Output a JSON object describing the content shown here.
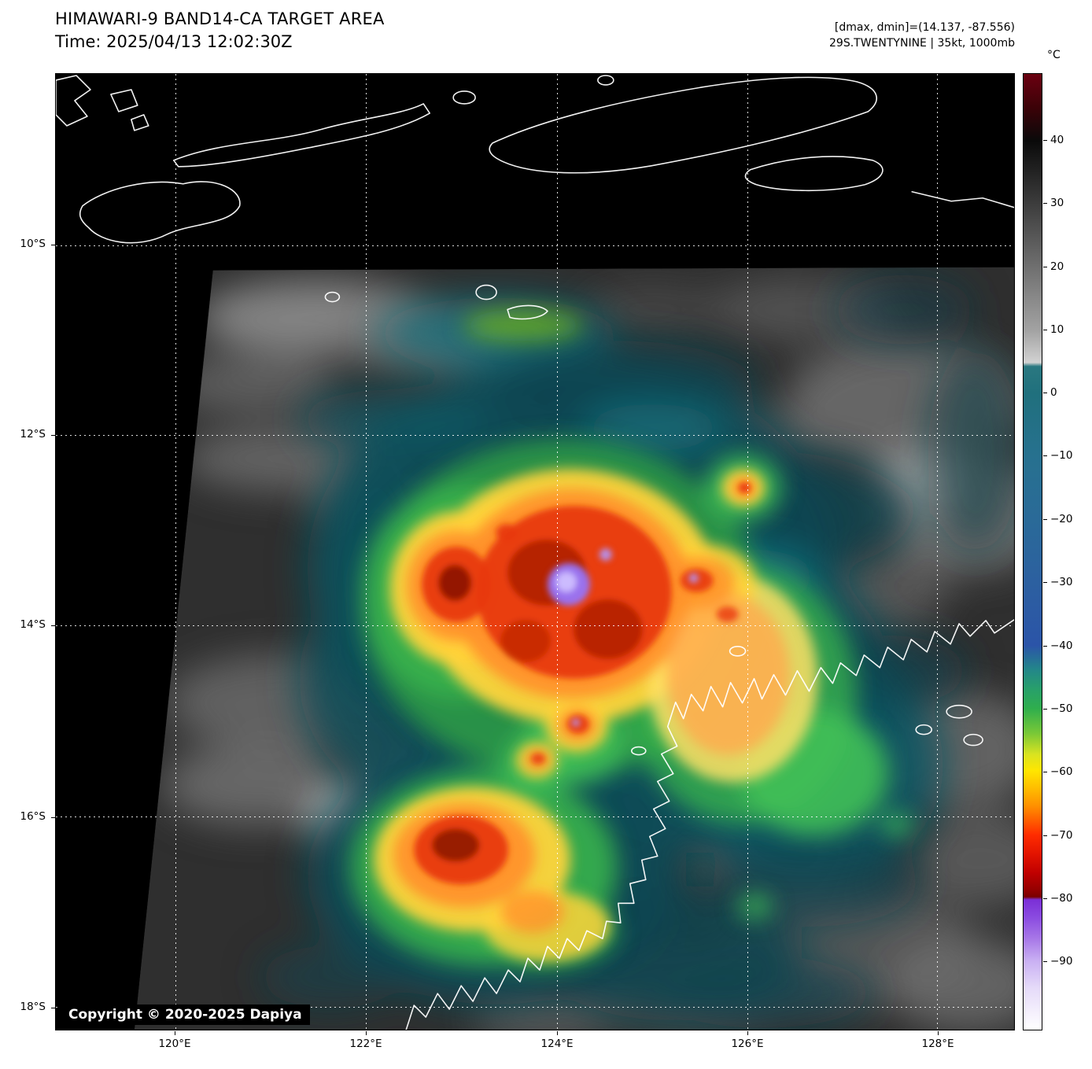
{
  "header": {
    "title": "HIMAWARI-9 BAND14-CA TARGET AREA",
    "time_line": "Time: 2025/04/13 12:02:30Z",
    "dminmax_line": "[dmax, dmin]=(14.137, -87.556)",
    "storm_line": "29S.TWENTYNINE | 35kt, 1000mb"
  },
  "copyright": "Copyright © 2020-2025 Dapiya",
  "colorbar": {
    "unit_label": "°C",
    "ticks": [
      {
        "label": "40",
        "pos_pct": 6.98
      },
      {
        "label": "30",
        "pos_pct": 13.59
      },
      {
        "label": "20",
        "pos_pct": 20.18
      },
      {
        "label": "10",
        "pos_pct": 26.78
      },
      {
        "label": "0",
        "pos_pct": 33.36
      },
      {
        "label": "−10",
        "pos_pct": 39.96
      },
      {
        "label": "−20",
        "pos_pct": 46.59
      },
      {
        "label": "−30",
        "pos_pct": 53.16
      },
      {
        "label": "−40",
        "pos_pct": 59.82
      },
      {
        "label": "−50",
        "pos_pct": 66.39
      },
      {
        "label": "−60",
        "pos_pct": 72.97
      },
      {
        "label": "−70",
        "pos_pct": 79.62
      },
      {
        "label": "−80",
        "pos_pct": 86.2
      },
      {
        "label": "−90",
        "pos_pct": 92.78
      }
    ],
    "gradient_stops": [
      {
        "pct": 0,
        "color": "#6b0010"
      },
      {
        "pct": 3.5,
        "color": "#3c0208"
      },
      {
        "pct": 7,
        "color": "#0a0a0a"
      },
      {
        "pct": 26.8,
        "color": "#a2a2a2"
      },
      {
        "pct": 30.2,
        "color": "#d2d2d2"
      },
      {
        "pct": 30.6,
        "color": "#2a7880"
      },
      {
        "pct": 33.4,
        "color": "#20707d"
      },
      {
        "pct": 40,
        "color": "#27718f"
      },
      {
        "pct": 46.6,
        "color": "#2a6a98"
      },
      {
        "pct": 53.2,
        "color": "#2c60a0"
      },
      {
        "pct": 59.8,
        "color": "#2b54a8"
      },
      {
        "pct": 62.3,
        "color": "#23868a"
      },
      {
        "pct": 64.4,
        "color": "#28a06a"
      },
      {
        "pct": 66.4,
        "color": "#2fae4d"
      },
      {
        "pct": 69,
        "color": "#79c837"
      },
      {
        "pct": 71.2,
        "color": "#d9e321"
      },
      {
        "pct": 72.9,
        "color": "#ffe600"
      },
      {
        "pct": 74.6,
        "color": "#ffc000"
      },
      {
        "pct": 76.6,
        "color": "#ff9000"
      },
      {
        "pct": 78.4,
        "color": "#ff5400"
      },
      {
        "pct": 79.6,
        "color": "#ff2c00"
      },
      {
        "pct": 81.6,
        "color": "#e31400"
      },
      {
        "pct": 83.6,
        "color": "#c00000"
      },
      {
        "pct": 85.4,
        "color": "#940000"
      },
      {
        "pct": 86.1,
        "color": "#7a0000"
      },
      {
        "pct": 86.4,
        "color": "#7b2fd6"
      },
      {
        "pct": 88.2,
        "color": "#8a4ae0"
      },
      {
        "pct": 90.6,
        "color": "#a97ae8"
      },
      {
        "pct": 92.8,
        "color": "#c9b0f3"
      },
      {
        "pct": 95.6,
        "color": "#e5daf9"
      },
      {
        "pct": 100,
        "color": "#ffffff"
      }
    ]
  },
  "axes": {
    "lat_ticks": [
      {
        "label": "10°S",
        "pos_pct": 17.91
      },
      {
        "label": "12°S",
        "pos_pct": 37.8
      },
      {
        "label": "14°S",
        "pos_pct": 57.68
      },
      {
        "label": "16°S",
        "pos_pct": 77.73
      },
      {
        "label": "18°S",
        "pos_pct": 97.62
      }
    ],
    "lon_ticks": [
      {
        "label": "120°E",
        "pos_pct": 12.46
      },
      {
        "label": "122°E",
        "pos_pct": 32.38
      },
      {
        "label": "124°E",
        "pos_pct": 52.3
      },
      {
        "label": "126°E",
        "pos_pct": 72.13
      },
      {
        "label": "128°E",
        "pos_pct": 91.97
      }
    ]
  },
  "map_data": {
    "type": "heatmap",
    "description": "Infrared brightness-temperature satellite image (Himawari-9 Band 14) of tropical cyclone 29S TWENTYNINE; grayscale for warm scenes, rainbow colors for cold convective cloud tops, white coastlines over black background outside the scanned target area",
    "satellite": "HIMAWARI-9",
    "band": "BAND14-CA",
    "product": "TARGET AREA",
    "time_utc": "2025/04/13 12:02:30Z",
    "storm_id": "29S.TWENTYNINE",
    "storm_intensity": "35kt",
    "storm_pressure": "1000mb",
    "dmax_c": 14.137,
    "dmin_c": -87.556,
    "colorbar_unit": "°C",
    "colorbar_ticks_c": [
      40,
      30,
      20,
      10,
      0,
      -10,
      -20,
      -30,
      -40,
      -50,
      -60,
      -70,
      -80,
      -90
    ],
    "lat_ticks_deg_s": [
      10,
      12,
      14,
      16,
      18
    ],
    "lon_ticks_deg_e": [
      120,
      122,
      124,
      126,
      128
    ],
    "depicted_features": [
      "main convective cluster with red (≈ −70°C) tops and small purple core (< −80°C) near 124.1°E 13.5°S",
      "secondary deep-convection cell to the west near 123°E 13.6°S",
      "large yellow/orange convective mass near 123.2°E 16.4°S over the NW Australian coast",
      "island coastlines (Timor region) along the top, northwest Australia coastline lower right"
    ]
  }
}
